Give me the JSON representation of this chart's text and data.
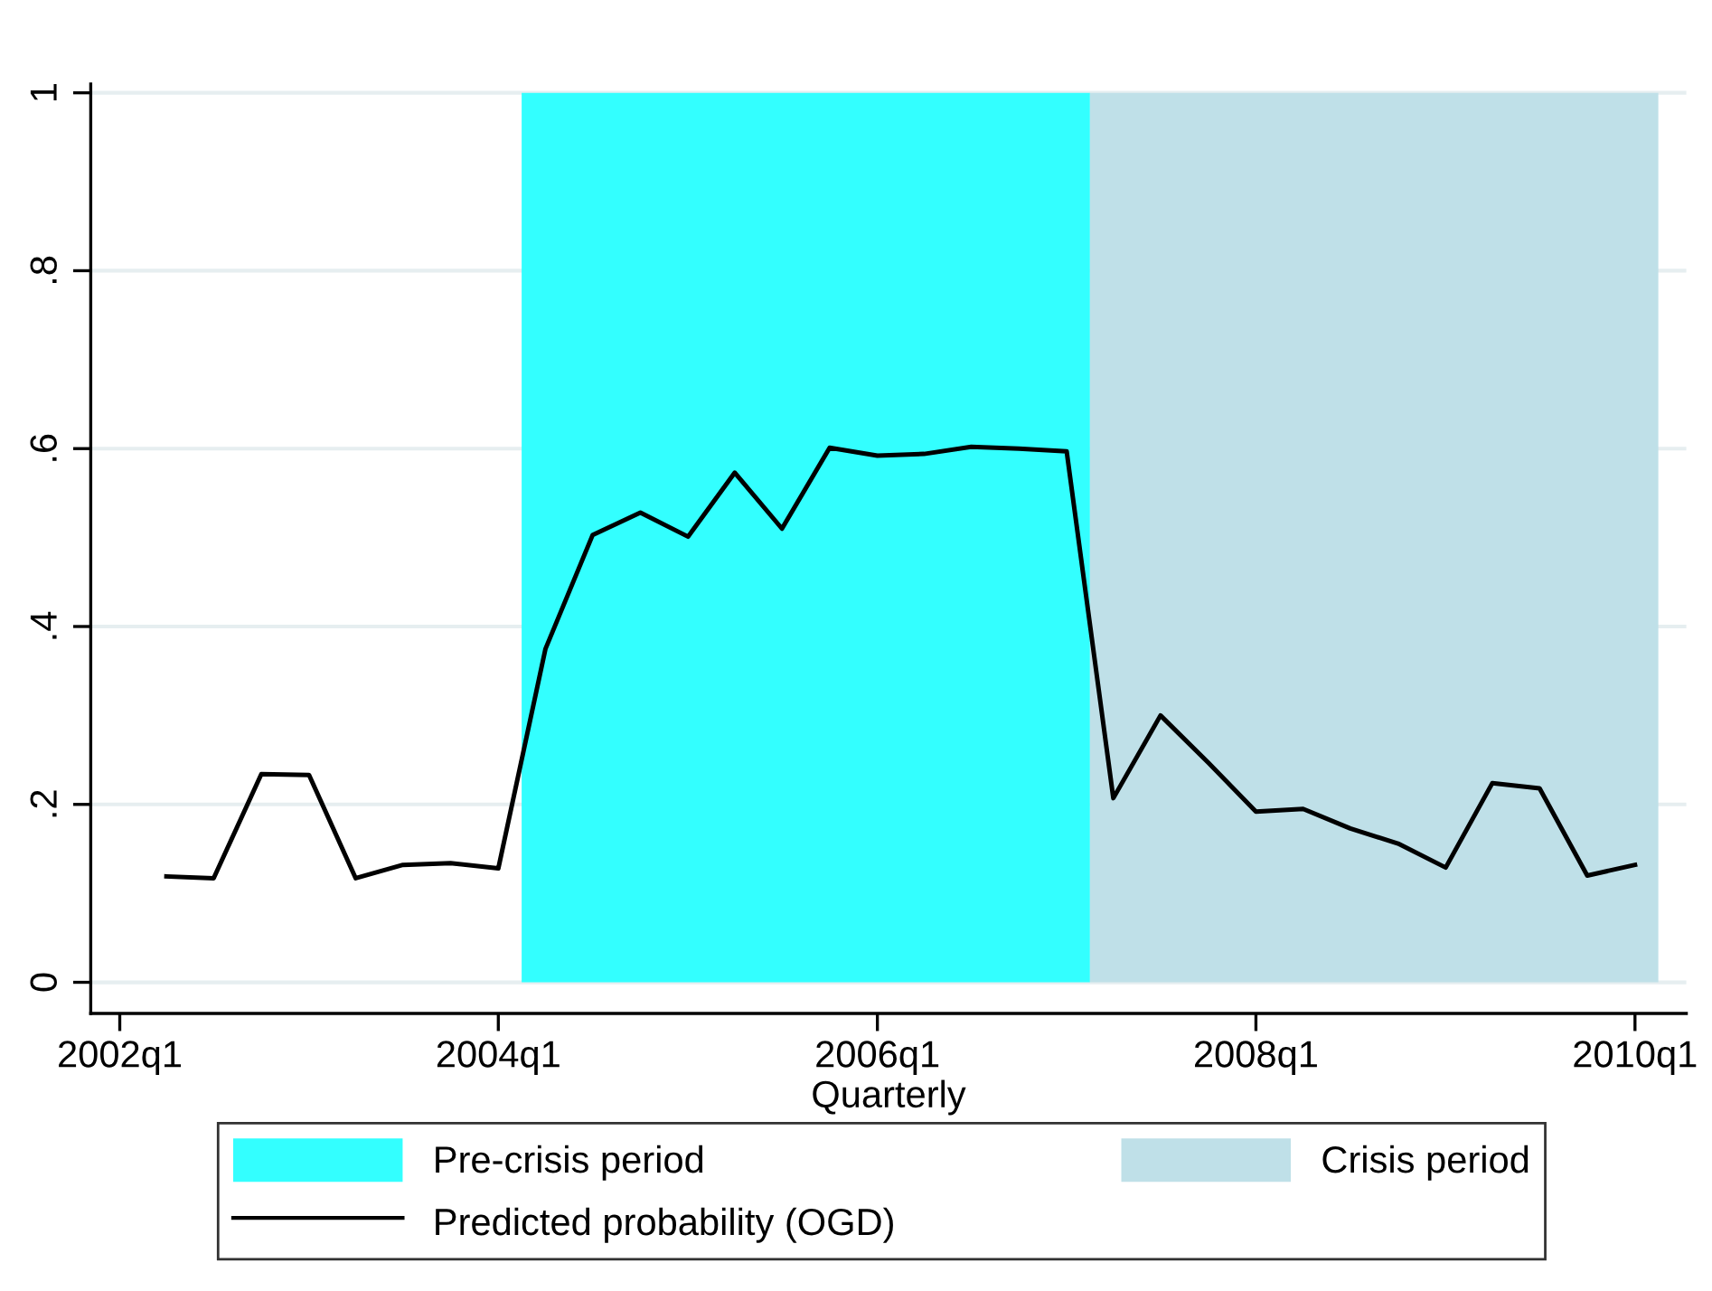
{
  "chart_data": {
    "type": "line",
    "xlabel": "Quarterly",
    "x": [
      "2002-04",
      "2002-07",
      "2002-10",
      "2003-01",
      "2003-04",
      "2003-07",
      "2003-10",
      "2004-01",
      "2004-04",
      "2004-07",
      "2004-10",
      "2005-01",
      "2005-04",
      "2005-07",
      "2005-10",
      "2006-01",
      "2006-04",
      "2006-07",
      "2006-10",
      "2007-01",
      "2007-04",
      "2007-07",
      "2007-10",
      "2008-01",
      "2008-04",
      "2008-07",
      "2008-10",
      "2009-01",
      "2009-04",
      "2009-07",
      "2009-10",
      "2010-01"
    ],
    "series": [
      {
        "name": "Predicted probability (OGD)",
        "color": "#000000",
        "values": [
          0.119,
          0.117,
          0.234,
          0.233,
          0.117,
          0.132,
          0.134,
          0.128,
          0.375,
          0.503,
          0.528,
          0.501,
          0.573,
          0.51,
          0.601,
          0.592,
          0.594,
          0.602,
          0.6,
          0.597,
          0.207,
          0.3,
          0.247,
          0.192,
          0.195,
          0.173,
          0.156,
          0.129,
          0.224,
          0.218,
          0.12,
          0.132
        ]
      }
    ],
    "bands": [
      {
        "axis": "x",
        "from": "2004-02-15",
        "to": "2007-02-15",
        "label": "Pre-crisis period",
        "color": "#33ffff"
      },
      {
        "axis": "x",
        "from": "2007-02-15",
        "to": "2010-02-15",
        "label": "Crisis period",
        "color": "#bfe0e8"
      }
    ],
    "xlim": [
      "2001-11-06",
      "2010-04-10"
    ],
    "xticks": [
      {
        "value": "2002-01",
        "label": "2002q1"
      },
      {
        "value": "2004-01",
        "label": "2004q1"
      },
      {
        "value": "2006-01",
        "label": "2006q1"
      },
      {
        "value": "2008-01",
        "label": "2008q1"
      },
      {
        "value": "2010-01",
        "label": "2010q1"
      }
    ],
    "ylim": [
      -0.035,
      1.01
    ],
    "yticks": [
      {
        "value": 0,
        "label": "0"
      },
      {
        "value": 0.2,
        "label": ".2"
      },
      {
        "value": 0.4,
        "label": ".4"
      },
      {
        "value": 0.6,
        "label": ".6"
      },
      {
        "value": 0.8,
        "label": ".8"
      },
      {
        "value": 1,
        "label": "1"
      }
    ],
    "grid": "y",
    "legend": "bottom",
    "marker": "none",
    "line_style": "solid"
  }
}
